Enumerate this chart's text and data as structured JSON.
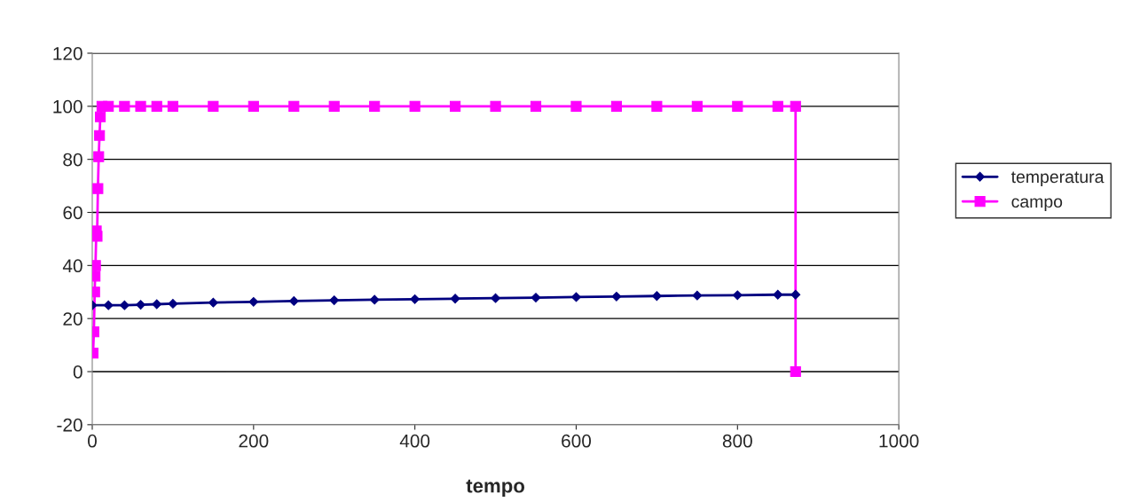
{
  "chart_data": {
    "type": "line",
    "xlabel": "tempo",
    "xlim": [
      0,
      1000
    ],
    "xticks": [
      0,
      200,
      400,
      600,
      800,
      1000
    ],
    "ylim": [
      -20,
      120
    ],
    "yticks": [
      -20,
      0,
      20,
      40,
      60,
      80,
      100,
      120
    ],
    "grid": "y",
    "legend": "right",
    "series": [
      {
        "name": "temperatura",
        "color": "#000080",
        "marker": "diamond",
        "x": [
          0,
          20,
          40,
          60,
          80,
          100,
          150,
          200,
          250,
          300,
          350,
          400,
          450,
          500,
          550,
          600,
          650,
          700,
          750,
          800,
          850,
          872
        ],
        "values": [
          25,
          25,
          25,
          25.2,
          25.4,
          25.6,
          26,
          26.3,
          26.6,
          26.9,
          27.1,
          27.3,
          27.5,
          27.7,
          27.9,
          28.1,
          28.3,
          28.5,
          28.7,
          28.8,
          29,
          29
        ]
      },
      {
        "name": "campo",
        "color": "#ff00ff",
        "marker": "square",
        "x": [
          1,
          2,
          3,
          3.5,
          4,
          5,
          6,
          7,
          8,
          9,
          10,
          12,
          20,
          40,
          60,
          80,
          100,
          150,
          200,
          250,
          300,
          350,
          400,
          450,
          500,
          550,
          600,
          650,
          700,
          750,
          800,
          850,
          872,
          872
        ],
        "values": [
          7,
          15,
          30,
          36,
          40,
          53,
          51,
          69,
          81,
          89,
          96,
          100,
          100,
          100,
          100,
          100,
          100,
          100,
          100,
          100,
          100,
          100,
          100,
          100,
          100,
          100,
          100,
          100,
          100,
          100,
          100,
          100,
          100,
          0
        ]
      }
    ]
  }
}
